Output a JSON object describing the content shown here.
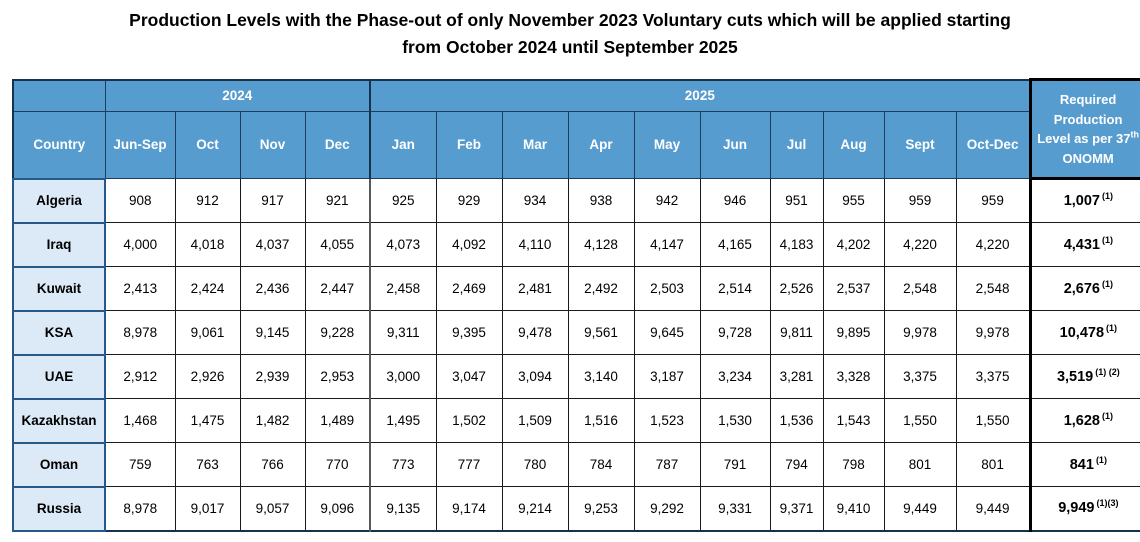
{
  "title": "Production Levels with the Phase-out of only November 2023 Voluntary cuts which will be applied starting from October 2024 until September 2025",
  "colors": {
    "header_bg": "#579CCE",
    "header_border": "#1E3C5C",
    "country_bg": "#DCE9F6",
    "country_border": "#27588A",
    "grid": "#1A1A1A",
    "header_text": "#FFFFFF"
  },
  "table": {
    "year_groups": [
      {
        "label": "2024",
        "span": 4
      },
      {
        "label": "2025",
        "span": 10
      }
    ],
    "required_header": {
      "text": "Required Production Level as per 37",
      "sup": "th",
      "rest": " ONOMM"
    },
    "columns": [
      "Country",
      "Jun-Sep",
      "Oct",
      "Nov",
      "Dec",
      "Jan",
      "Feb",
      "Mar",
      "Apr",
      "May",
      "Jun",
      "Jul",
      "Aug",
      "Sept",
      "Oct-Dec"
    ],
    "rows": [
      {
        "country": "Algeria",
        "values": [
          "908",
          "912",
          "917",
          "921",
          "925",
          "929",
          "934",
          "938",
          "942",
          "946",
          "951",
          "955",
          "959",
          "959"
        ],
        "required": "1,007",
        "required_sup": "(1)"
      },
      {
        "country": "Iraq",
        "values": [
          "4,000",
          "4,018",
          "4,037",
          "4,055",
          "4,073",
          "4,092",
          "4,110",
          "4,128",
          "4,147",
          "4,165",
          "4,183",
          "4,202",
          "4,220",
          "4,220"
        ],
        "required": "4,431",
        "required_sup": "(1)"
      },
      {
        "country": "Kuwait",
        "values": [
          "2,413",
          "2,424",
          "2,436",
          "2,447",
          "2,458",
          "2,469",
          "2,481",
          "2,492",
          "2,503",
          "2,514",
          "2,526",
          "2,537",
          "2,548",
          "2,548"
        ],
        "required": "2,676",
        "required_sup": "(1)"
      },
      {
        "country": "KSA",
        "values": [
          "8,978",
          "9,061",
          "9,145",
          "9,228",
          "9,311",
          "9,395",
          "9,478",
          "9,561",
          "9,645",
          "9,728",
          "9,811",
          "9,895",
          "9,978",
          "9,978"
        ],
        "required": "10,478",
        "required_sup": "(1)"
      },
      {
        "country": "UAE",
        "values": [
          "2,912",
          "2,926",
          "2,939",
          "2,953",
          "3,000",
          "3,047",
          "3,094",
          "3,140",
          "3,187",
          "3,234",
          "3,281",
          "3,328",
          "3,375",
          "3,375"
        ],
        "required": "3,519",
        "required_sup": "(1) (2)"
      },
      {
        "country": "Kazakhstan",
        "values": [
          "1,468",
          "1,475",
          "1,482",
          "1,489",
          "1,495",
          "1,502",
          "1,509",
          "1,516",
          "1,523",
          "1,530",
          "1,536",
          "1,543",
          "1,550",
          "1,550"
        ],
        "required": "1,628",
        "required_sup": "(1)"
      },
      {
        "country": "Oman",
        "values": [
          "759",
          "763",
          "766",
          "770",
          "773",
          "777",
          "780",
          "784",
          "787",
          "791",
          "794",
          "798",
          "801",
          "801"
        ],
        "required": "841",
        "required_sup": "(1)"
      },
      {
        "country": "Russia",
        "values": [
          "8,978",
          "9,017",
          "9,057",
          "9,096",
          "9,135",
          "9,174",
          "9,214",
          "9,253",
          "9,292",
          "9,331",
          "9,371",
          "9,410",
          "9,449",
          "9,449"
        ],
        "required": "9,949",
        "required_sup": "(1)(3)"
      }
    ]
  }
}
